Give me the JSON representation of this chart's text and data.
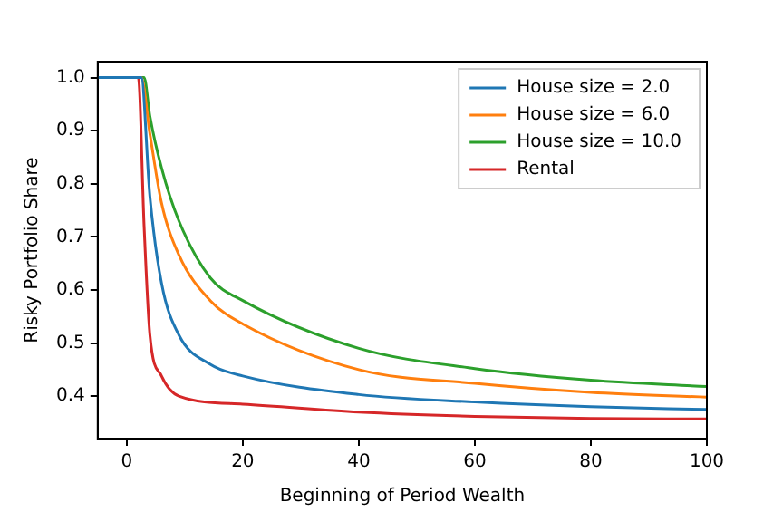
{
  "chart_data": {
    "type": "line",
    "xlabel": "Beginning of Period Wealth",
    "ylabel": "Risky Portfolio Share",
    "xlim": [
      -5,
      100
    ],
    "xticks": [
      0,
      20,
      40,
      60,
      80,
      100
    ],
    "ylim": [
      0.32,
      1.03
    ],
    "yticks": [
      0.4,
      0.5,
      0.6,
      0.7,
      0.8,
      0.9,
      {
        "value": 1,
        "label": "1.0"
      }
    ],
    "grid": false,
    "legend": "top right",
    "marker": "none",
    "line_style": "solid",
    "series": [
      {
        "name": "House size = 2.0",
        "color": "#1f77b4",
        "x": [
          -5,
          2.5,
          4,
          6,
          9,
          14.4,
          20,
          40,
          60,
          80,
          100
        ],
        "values": [
          1.0,
          1.0,
          0.776,
          0.613,
          0.515,
          0.46,
          0.438,
          0.403,
          0.389,
          0.38,
          0.375
        ]
      },
      {
        "name": "House size = 6.0",
        "color": "#ff7f0e",
        "x": [
          -5,
          2.5,
          4,
          6,
          9,
          14.4,
          20,
          40,
          60,
          80,
          100
        ],
        "values": [
          1.0,
          1.0,
          0.894,
          0.764,
          0.666,
          0.58,
          0.536,
          0.45,
          0.424,
          0.407,
          0.398
        ]
      },
      {
        "name": "House size = 10.0",
        "color": "#2ca02c",
        "x": [
          -5,
          3,
          4,
          6,
          9,
          14.4,
          20,
          40,
          60,
          80,
          100
        ],
        "values": [
          1.0,
          1.0,
          0.927,
          0.83,
          0.73,
          0.623,
          0.58,
          0.49,
          0.452,
          0.43,
          0.418
        ]
      },
      {
        "name": "Rental",
        "color": "#d62728",
        "x": [
          -5,
          2,
          3,
          4,
          6,
          9,
          20,
          40,
          60,
          80,
          100
        ],
        "values": [
          1.0,
          1.0,
          0.72,
          0.515,
          0.438,
          0.4,
          0.385,
          0.37,
          0.362,
          0.358,
          0.357
        ]
      }
    ]
  }
}
